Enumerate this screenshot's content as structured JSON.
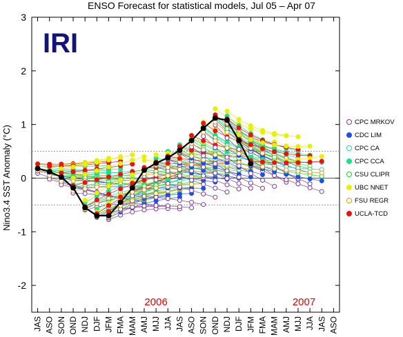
{
  "chart_data": {
    "type": "line",
    "title": "ENSO Forecast for statistical models, Jul 05 – Apr 07",
    "ylabel": "Nino3.4 SST Anomaly (°C)",
    "xlabel": "",
    "logo_text": "IRI",
    "ylim": [
      -2.5,
      3
    ],
    "yticks": [
      -2,
      -1,
      0,
      1,
      2,
      3
    ],
    "reference_lines": [
      0.5,
      -0.5
    ],
    "x_categories": [
      "JAS",
      "ASO",
      "SON",
      "OND",
      "NDJ",
      "DJF",
      "JFM",
      "FMA",
      "MAM",
      "AMJ",
      "MJJ",
      "JJA",
      "JAS",
      "ASO",
      "SON",
      "OND",
      "NDJ",
      "DJF",
      "JFM",
      "FMA",
      "MAM",
      "AMJ",
      "MJJ",
      "JJA",
      "JAS",
      "ASO"
    ],
    "year_labels": [
      {
        "text": "2006",
        "at": 10
      },
      {
        "text": "2007",
        "at": 22.5
      }
    ],
    "observed": {
      "values": [
        0.18,
        0.12,
        0.02,
        -0.18,
        -0.55,
        -0.7,
        -0.7,
        -0.45,
        -0.18,
        0.15,
        0.28,
        0.38,
        0.52,
        0.7,
        0.93,
        1.12,
        1.08,
        0.7,
        0.27
      ]
    },
    "series": [
      {
        "name": "CPC MRKOV",
        "color": "#7a3a9a",
        "filled": false
      },
      {
        "name": "CDC LIM",
        "color": "#1f4fe8",
        "filled": true
      },
      {
        "name": "CPC CA",
        "color": "#1fd8a0",
        "filled": false
      },
      {
        "name": "CPC CCA",
        "color": "#1fe08a",
        "filled": true
      },
      {
        "name": "CSU CLIPR",
        "color": "#22d022",
        "filled": false
      },
      {
        "name": "UBC NNET",
        "color": "#e6f000",
        "filled": true
      },
      {
        "name": "FSU REGR",
        "color": "#d89a1a",
        "filled": false
      },
      {
        "name": "UCLA-TCD",
        "color": "#ee1111",
        "filled": true
      }
    ]
  }
}
